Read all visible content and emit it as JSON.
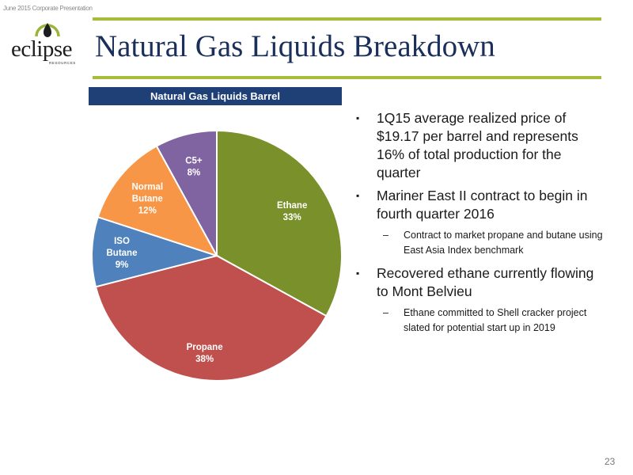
{
  "header_note": "June 2015 Corporate Presentation",
  "logo": {
    "word": "eclipse",
    "sub": "RESOURCES"
  },
  "title": "Natural Gas Liquids Breakdown",
  "chart_data": {
    "type": "pie",
    "title": "Natural Gas Liquids Barrel",
    "categories": [
      "Ethane",
      "Propane",
      "ISO Butane",
      "Normal Butane",
      "C5+"
    ],
    "values": [
      33,
      38,
      9,
      12,
      8
    ],
    "labels": [
      {
        "lines": [
          "Ethane",
          "33%"
        ]
      },
      {
        "lines": [
          "Propane",
          "38%"
        ]
      },
      {
        "lines": [
          "ISO",
          "Butane",
          "9%"
        ]
      },
      {
        "lines": [
          "Normal",
          "Butane",
          "12%"
        ]
      },
      {
        "lines": [
          "C5+",
          "8%"
        ]
      }
    ],
    "colors": [
      "#7a912b",
      "#c0504d",
      "#4f81bd",
      "#f79646",
      "#8064a2"
    ],
    "legend": "none"
  },
  "bullets": [
    {
      "text": "1Q15 average realized price of $19.17 per barrel and represents 16% of total production for the quarter",
      "subs": []
    },
    {
      "text": "Mariner East II contract to begin in fourth quarter 2016",
      "subs": [
        "Contract to market propane and butane using East Asia Index benchmark"
      ]
    },
    {
      "text": "Recovered ethane currently flowing to Mont Belvieu",
      "subs": [
        "Ethane committed to Shell cracker project slated for potential start up in 2019"
      ]
    }
  ],
  "bullet_marker": "▪",
  "sub_marker": "–",
  "page_number": "23",
  "colors": {
    "accent_rule": "#a7bd3a",
    "title": "#1b2f5b",
    "banner": "#1f3f77"
  }
}
